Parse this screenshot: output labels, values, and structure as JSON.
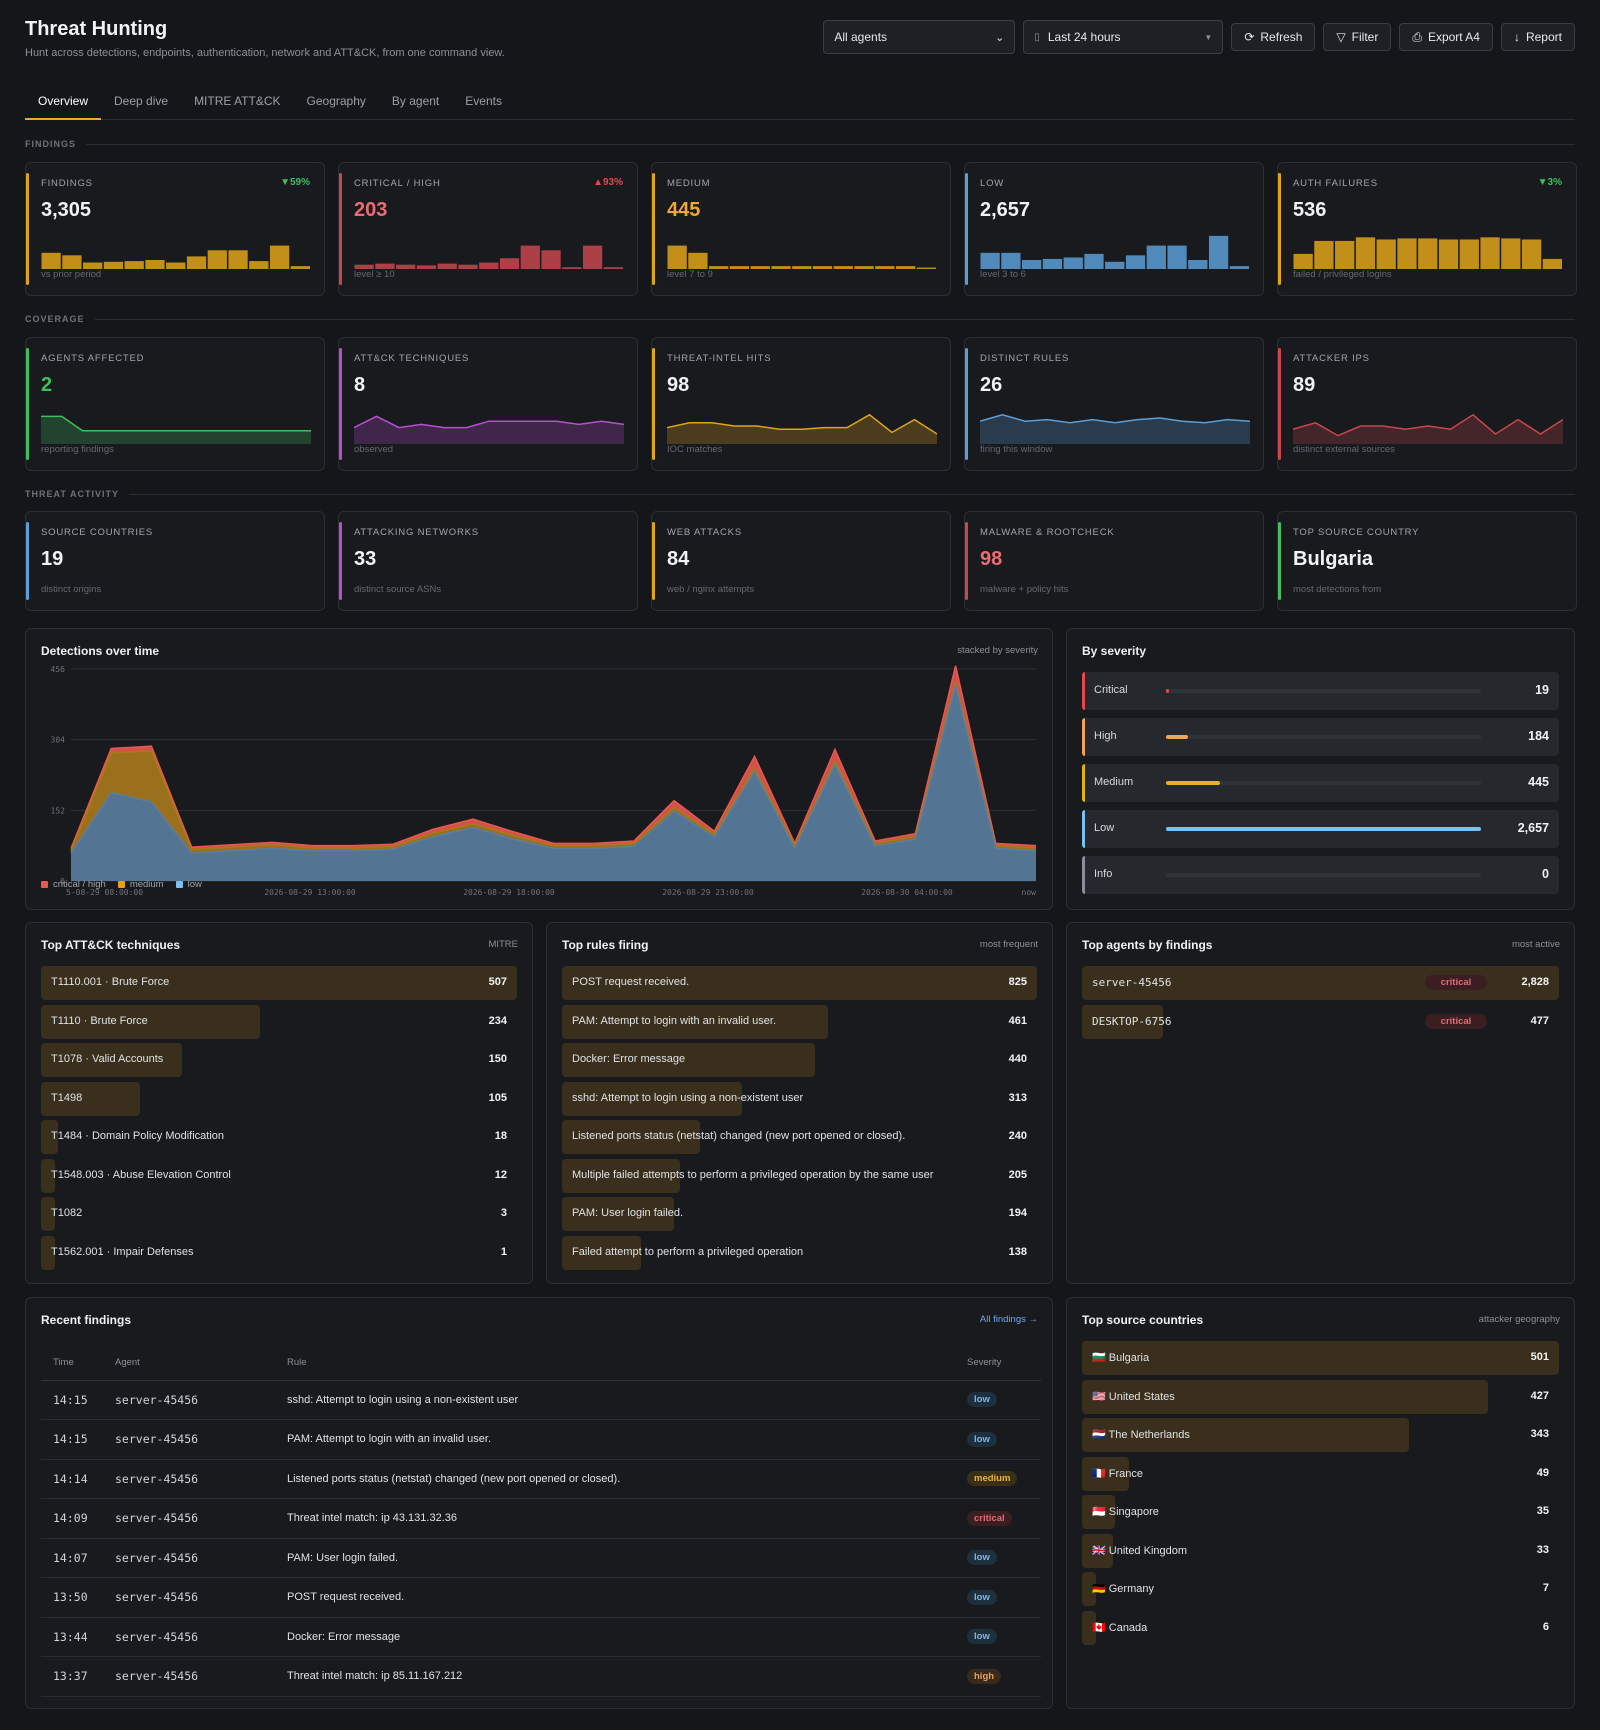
{
  "header": {
    "title": "Threat Hunting",
    "subtitle": "Hunt across detections, endpoints, authentication, network and ATT&CK, from one command view.",
    "agent_select": "All agents",
    "time_select": "Last 24 hours",
    "buttons": {
      "refresh": "Refresh",
      "filter": "Filter",
      "export": "Export A4",
      "report": "Report"
    }
  },
  "tabs": [
    "Overview",
    "Deep dive",
    "MITRE ATT&CK",
    "Geography",
    "By agent",
    "Events"
  ],
  "sections": {
    "findings": "FINDINGS",
    "coverage": "COVERAGE",
    "threat": "THREAT ACTIVITY"
  },
  "findings_cards": [
    {
      "label": "FINDINGS",
      "value": "3,305",
      "delta": "▼59%",
      "delta_color": "#3fbf5f",
      "sub": "vs prior period",
      "color": "#e0a418",
      "value_color": "#f2f3f5",
      "bars": [
        0.45,
        0.38,
        0.18,
        0.2,
        0.22,
        0.25,
        0.18,
        0.35,
        0.52,
        0.52,
        0.22,
        0.65,
        0.08
      ]
    },
    {
      "label": "CRITICAL / HIGH",
      "value": "203",
      "delta": "▲93%",
      "delta_color": "#e5484d",
      "sub": "level ≥ 10",
      "color": "#c8474f",
      "value_color": "#ef6b72",
      "bars": [
        0.12,
        0.15,
        0.12,
        0.1,
        0.15,
        0.12,
        0.18,
        0.3,
        0.65,
        0.52,
        0.05,
        0.65,
        0.05
      ]
    },
    {
      "label": "MEDIUM",
      "value": "445",
      "delta": "",
      "delta_color": "#8b9098",
      "sub": "level 7 to 9",
      "color": "#e0a418",
      "value_color": "#f0a830",
      "bars": [
        0.65,
        0.45,
        0.08,
        0.08,
        0.08,
        0.08,
        0.08,
        0.08,
        0.08,
        0.08,
        0.08,
        0.08,
        0.04
      ]
    },
    {
      "label": "LOW",
      "value": "2,657",
      "delta": "",
      "delta_color": "#8b9098",
      "sub": "level 3 to 6",
      "color": "#5b9fd6",
      "value_color": "#f2f3f5",
      "bars": [
        0.45,
        0.45,
        0.25,
        0.28,
        0.32,
        0.42,
        0.2,
        0.38,
        0.65,
        0.65,
        0.25,
        0.92,
        0.08
      ]
    },
    {
      "label": "AUTH FAILURES",
      "value": "536",
      "delta": "▼3%",
      "delta_color": "#3fbf5f",
      "sub": "failed / privileged logins",
      "color": "#e0a418",
      "value_color": "#f2f3f5",
      "bars": [
        0.42,
        0.78,
        0.78,
        0.88,
        0.82,
        0.85,
        0.85,
        0.82,
        0.82,
        0.88,
        0.85,
        0.82,
        0.28
      ]
    }
  ],
  "coverage_cards": [
    {
      "label": "AGENTS AFFECTED",
      "value": "2",
      "sub": "reporting findings",
      "color": "#3fbf5f",
      "value_color": "#3fbf5f",
      "line": [
        0.2,
        0.2,
        0.65,
        0.65,
        0.65,
        0.65,
        0.65,
        0.65,
        0.65,
        0.65,
        0.65,
        0.65,
        0.65,
        0.65
      ]
    },
    {
      "label": "ATT&CK TECHNIQUES",
      "value": "8",
      "sub": "observed",
      "color": "#b84fd0",
      "value_color": "#f2f3f5",
      "line": [
        0.55,
        0.2,
        0.55,
        0.45,
        0.55,
        0.55,
        0.35,
        0.35,
        0.35,
        0.35,
        0.45,
        0.35,
        0.45
      ]
    },
    {
      "label": "THREAT-INTEL HITS",
      "value": "98",
      "sub": "IOC matches",
      "color": "#e0a418",
      "value_color": "#f2f3f5",
      "line": [
        0.55,
        0.4,
        0.4,
        0.5,
        0.5,
        0.6,
        0.6,
        0.55,
        0.55,
        0.15,
        0.7,
        0.3,
        0.75
      ]
    },
    {
      "label": "DISTINCT RULES",
      "value": "26",
      "sub": "firing this window",
      "color": "#5b9fd6",
      "value_color": "#f2f3f5",
      "line": [
        0.35,
        0.15,
        0.35,
        0.3,
        0.4,
        0.3,
        0.4,
        0.3,
        0.25,
        0.35,
        0.4,
        0.3,
        0.35
      ]
    },
    {
      "label": "ATTACKER IPS",
      "value": "89",
      "sub": "distinct external sources",
      "color": "#c8474f",
      "value_color": "#f2f3f5",
      "line": [
        0.6,
        0.4,
        0.8,
        0.5,
        0.5,
        0.6,
        0.5,
        0.6,
        0.15,
        0.75,
        0.3,
        0.75,
        0.3
      ]
    }
  ],
  "threat_cards": [
    {
      "label": "SOURCE COUNTRIES",
      "value": "19",
      "sub": "distinct origins",
      "color": "#5b9fd6",
      "value_color": "#f2f3f5"
    },
    {
      "label": "ATTACKING NETWORKS",
      "value": "33",
      "sub": "distinct source ASNs",
      "color": "#b84fd0",
      "value_color": "#f2f3f5"
    },
    {
      "label": "WEB ATTACKS",
      "value": "84",
      "sub": "web / nginx attempts",
      "color": "#e0a418",
      "value_color": "#f2f3f5"
    },
    {
      "label": "MALWARE & ROOTCHECK",
      "value": "98",
      "sub": "malware + policy hits",
      "color": "#c8474f",
      "value_color": "#ef6b72"
    },
    {
      "label": "TOP SOURCE COUNTRY",
      "value": "Bulgaria",
      "sub": "most detections from",
      "color": "#3fbf5f",
      "value_color": "#f2f3f5"
    }
  ],
  "detections": {
    "title": "Detections over time",
    "note": "stacked by severity",
    "legend": [
      "critical / high",
      "medium",
      "low"
    ],
    "chart_data": {
      "type": "area",
      "y_ticks": [
        "456",
        "304",
        "152",
        "0"
      ],
      "ylim": [
        0,
        456
      ],
      "x_tick_labels": [
        "5-08-29 08:00:00",
        "2026-08-29 13:00:00",
        "2026-08-29 18:00:00",
        "2026-08-29 23:00:00",
        "2026-08-30 04:00:00",
        "now"
      ],
      "series": [
        {
          "name": "low",
          "color": "#5b7ea0",
          "values": [
            60,
            190,
            170,
            60,
            65,
            70,
            65,
            65,
            68,
            95,
            115,
            90,
            70,
            70,
            75,
            150,
            95,
            235,
            70,
            250,
            75,
            90,
            420,
            70,
            65
          ]
        },
        {
          "name": "medium",
          "color": "#a87a1c",
          "values": [
            5,
            85,
            110,
            8,
            8,
            8,
            6,
            6,
            6,
            8,
            8,
            8,
            6,
            6,
            6,
            8,
            6,
            8,
            6,
            8,
            6,
            6,
            8,
            6,
            6
          ]
        },
        {
          "name": "critical / high",
          "color": "#e8584f",
          "values": [
            5,
            10,
            10,
            5,
            5,
            5,
            5,
            5,
            5,
            8,
            10,
            8,
            5,
            5,
            5,
            15,
            6,
            25,
            5,
            25,
            5,
            6,
            35,
            5,
            5
          ]
        }
      ]
    }
  },
  "severity": {
    "title": "By severity",
    "rows": [
      {
        "name": "Critical",
        "value": "19",
        "frac": 0.008,
        "color": "#e5484d"
      },
      {
        "name": "High",
        "value": "184",
        "frac": 0.07,
        "color": "#f0a35a"
      },
      {
        "name": "Medium",
        "value": "445",
        "frac": 0.17,
        "color": "#e0b418"
      },
      {
        "name": "Low",
        "value": "2,657",
        "frac": 1.0,
        "color": "#7cc0f0"
      },
      {
        "name": "Info",
        "value": "0",
        "frac": 0,
        "color": "#8b9098"
      }
    ]
  },
  "techniques": {
    "title": "Top ATT&CK techniques",
    "note": "MITRE",
    "rows": [
      {
        "label": "T1110.001 · Brute Force",
        "value": "507",
        "frac": 1.0
      },
      {
        "label": "T1110 · Brute Force",
        "value": "234",
        "frac": 0.46
      },
      {
        "label": "T1078 · Valid Accounts",
        "value": "150",
        "frac": 0.296
      },
      {
        "label": "T1498",
        "value": "105",
        "frac": 0.207
      },
      {
        "label": "T1484 · Domain Policy Modification",
        "value": "18",
        "frac": 0.036
      },
      {
        "label": "T1548.003 · Abuse Elevation Control",
        "value": "12",
        "frac": 0.024
      },
      {
        "label": "T1082",
        "value": "3",
        "frac": 0.006
      },
      {
        "label": "T1562.001 · Impair Defenses",
        "value": "1",
        "frac": 0.002
      }
    ]
  },
  "rules": {
    "title": "Top rules firing",
    "note": "most frequent",
    "rows": [
      {
        "label": "POST request received.",
        "value": "825",
        "frac": 1.0
      },
      {
        "label": "PAM: Attempt to login with an invalid user.",
        "value": "461",
        "frac": 0.559
      },
      {
        "label": "Docker: Error message",
        "value": "440",
        "frac": 0.533
      },
      {
        "label": "sshd: Attempt to login using a non-existent user",
        "value": "313",
        "frac": 0.379
      },
      {
        "label": "Listened ports status (netstat) changed (new port opened or closed).",
        "value": "240",
        "frac": 0.291
      },
      {
        "label": "Multiple failed attempts to perform a privileged operation by the same user",
        "value": "205",
        "frac": 0.248
      },
      {
        "label": "PAM: User login failed.",
        "value": "194",
        "frac": 0.235
      },
      {
        "label": "Failed attempt to perform a privileged operation",
        "value": "138",
        "frac": 0.167
      }
    ]
  },
  "agents": {
    "title": "Top agents by findings",
    "note": "most active",
    "rows": [
      {
        "label": "server-45456",
        "badge": "critical",
        "value": "2,828",
        "frac": 1.0
      },
      {
        "label": "DESKTOP-6756",
        "badge": "critical",
        "value": "477",
        "frac": 0.169
      }
    ]
  },
  "recent": {
    "title": "Recent findings",
    "link": "All findings →",
    "columns": [
      "Time",
      "Agent",
      "Rule",
      "Severity"
    ],
    "rows": [
      {
        "time": "14:15",
        "agent": "server-45456",
        "rule": "sshd: Attempt to login using a non-existent user",
        "sev": "low"
      },
      {
        "time": "14:15",
        "agent": "server-45456",
        "rule": "PAM: Attempt to login with an invalid user.",
        "sev": "low"
      },
      {
        "time": "14:14",
        "agent": "server-45456",
        "rule": "Listened ports status (netstat) changed (new port opened or closed).",
        "sev": "medium"
      },
      {
        "time": "14:09",
        "agent": "server-45456",
        "rule": "Threat intel match: ip 43.131.32.36",
        "sev": "critical"
      },
      {
        "time": "14:07",
        "agent": "server-45456",
        "rule": "PAM: User login failed.",
        "sev": "low"
      },
      {
        "time": "13:50",
        "agent": "server-45456",
        "rule": "POST request received.",
        "sev": "low"
      },
      {
        "time": "13:44",
        "agent": "server-45456",
        "rule": "Docker: Error message",
        "sev": "low"
      },
      {
        "time": "13:37",
        "agent": "server-45456",
        "rule": "Threat intel match: ip 85.11.167.212",
        "sev": "high"
      }
    ]
  },
  "countries": {
    "title": "Top source countries",
    "note": "attacker geography",
    "rows": [
      {
        "label": "🇧🇬 Bulgaria",
        "value": "501",
        "frac": 1.0
      },
      {
        "label": "🇺🇸 United States",
        "value": "427",
        "frac": 0.852
      },
      {
        "label": "🇳🇱 The Netherlands",
        "value": "343",
        "frac": 0.685
      },
      {
        "label": "🇫🇷 France",
        "value": "49",
        "frac": 0.098
      },
      {
        "label": "🇸🇬 Singapore",
        "value": "35",
        "frac": 0.07
      },
      {
        "label": "🇬🇧 United Kingdom",
        "value": "33",
        "frac": 0.066
      },
      {
        "label": "🇩🇪 Germany",
        "value": "7",
        "frac": 0.014
      },
      {
        "label": "🇨🇦 Canada",
        "value": "6",
        "frac": 0.012
      }
    ]
  }
}
